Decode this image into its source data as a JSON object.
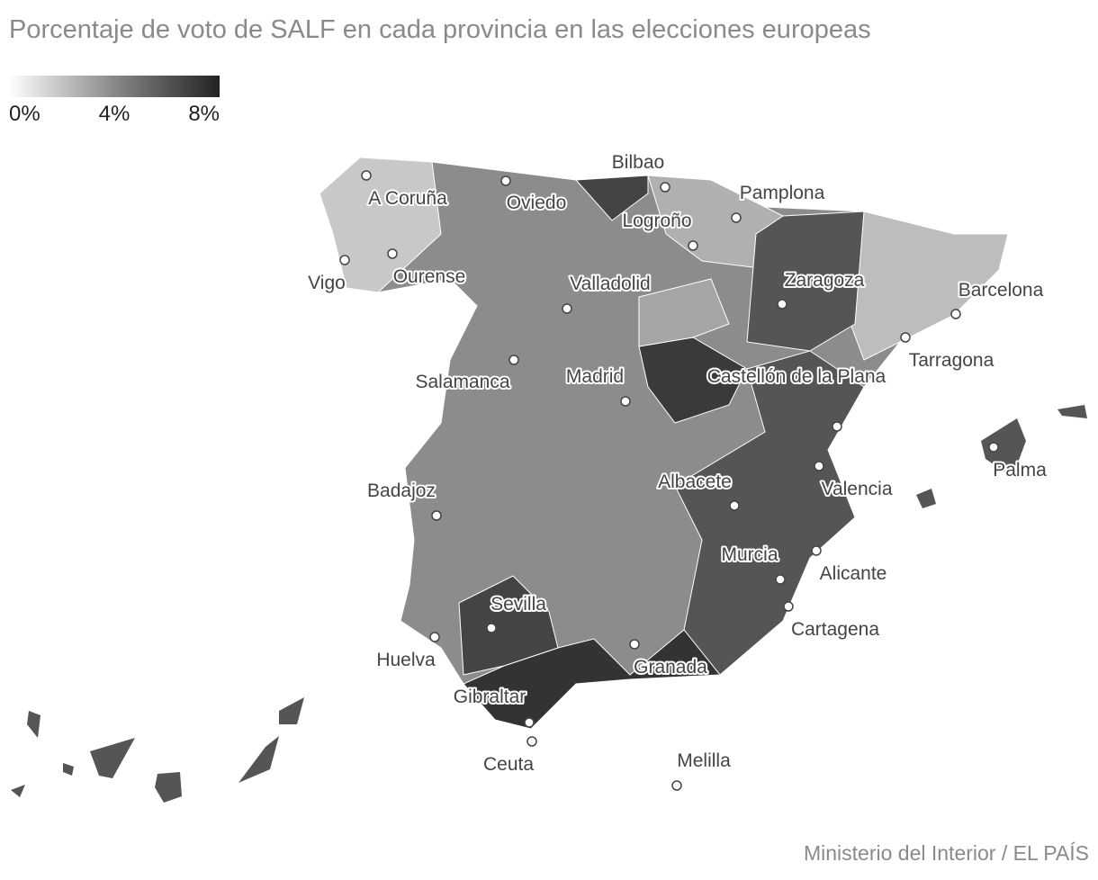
{
  "header": {
    "title": "Porcentaje de voto de SALF en cada provincia en las elecciones europeas"
  },
  "legend": {
    "ticks": [
      {
        "value": 0,
        "label": "0%"
      },
      {
        "value": 4,
        "label": "4%"
      },
      {
        "value": 8,
        "label": "8%"
      }
    ],
    "range": [
      0,
      8
    ]
  },
  "cities": [
    "A Coruña",
    "Oviedo",
    "Bilbao",
    "Pamplona",
    "Logroño",
    "Vigo",
    "Ourense",
    "Valladolid",
    "Zaragoza",
    "Barcelona",
    "Tarragona",
    "Salamanca",
    "Madrid",
    "Castellón de la Plana",
    "Valencia",
    "Palma",
    "Badajoz",
    "Albacete",
    "Murcia",
    "Alicante",
    "Sevilla",
    "Huelva",
    "Cartagena",
    "Granada",
    "Gibraltar",
    "Ceuta",
    "Melilla"
  ],
  "footer": {
    "source": "Ministerio del Interior / EL PAÍS"
  }
}
